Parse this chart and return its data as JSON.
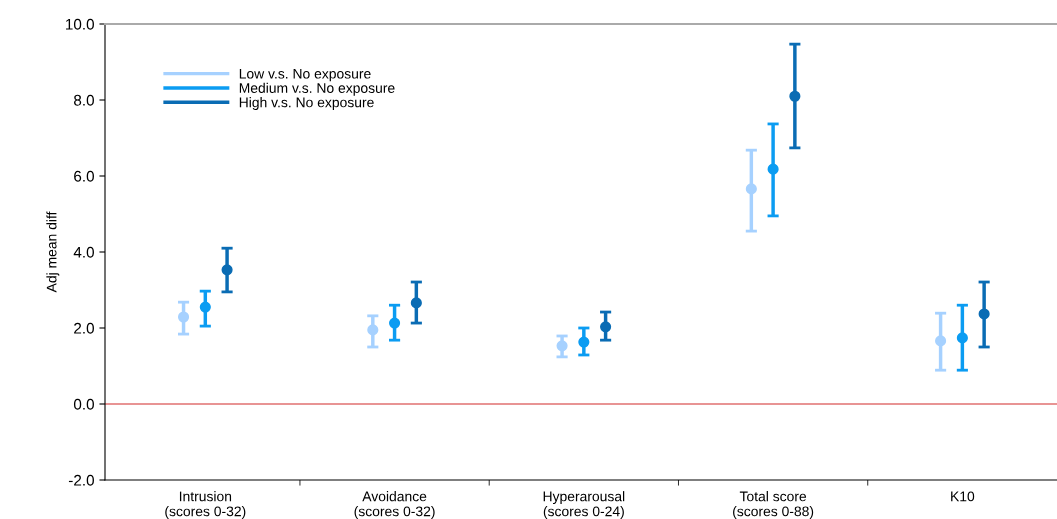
{
  "chart_data": {
    "type": "scatter",
    "ylabel": "Adj mean diff",
    "categories": [
      "Intrusion\n(scores 0-32)",
      "Avoidance\n(scores 0-32)",
      "Hyperarousal\n(scores 0-24)",
      "Total score\n(scores 0-88)",
      "K10"
    ],
    "series": [
      {
        "name": "Low v.s. No exposure",
        "color": "#a6d1ff",
        "values": [
          2.29,
          1.95,
          1.53,
          5.66,
          1.66
        ],
        "errors": [
          [
            1.84,
            2.68
          ],
          [
            1.5,
            2.32
          ],
          [
            1.24,
            1.79
          ],
          [
            4.55,
            6.68
          ],
          [
            0.89,
            2.39
          ]
        ]
      },
      {
        "name": "Medium v.s. No exposure",
        "color": "#0b9cf2",
        "values": [
          2.55,
          2.13,
          1.63,
          6.18,
          1.74
        ],
        "errors": [
          [
            2.05,
            2.97
          ],
          [
            1.68,
            2.6
          ],
          [
            1.29,
            2.0
          ],
          [
            4.95,
            7.37
          ],
          [
            0.89,
            2.6
          ]
        ]
      },
      {
        "name": "High v.s. No exposure",
        "color": "#0a6cb4",
        "values": [
          3.53,
          2.66,
          2.03,
          8.1,
          2.37
        ],
        "errors": [
          [
            2.95,
            4.1
          ],
          [
            2.13,
            3.21
          ],
          [
            1.68,
            2.42
          ],
          [
            6.74,
            9.47
          ],
          [
            1.5,
            3.21
          ]
        ]
      }
    ],
    "ylim": [
      -2,
      10
    ],
    "yticks": [
      {
        "value": -2,
        "label": "-2.0"
      },
      {
        "value": 0,
        "label": "0.0"
      },
      {
        "value": 2,
        "label": "2.0"
      },
      {
        "value": 4,
        "label": "4.0"
      },
      {
        "value": 6,
        "label": "6.0"
      },
      {
        "value": 8,
        "label": "8.0"
      },
      {
        "value": 10,
        "label": "10.0"
      }
    ],
    "ref_lines": [
      {
        "axis": "y",
        "value": 0,
        "color": "#e07070"
      }
    ],
    "marker": "circle",
    "legend": "top left",
    "grid": false
  }
}
